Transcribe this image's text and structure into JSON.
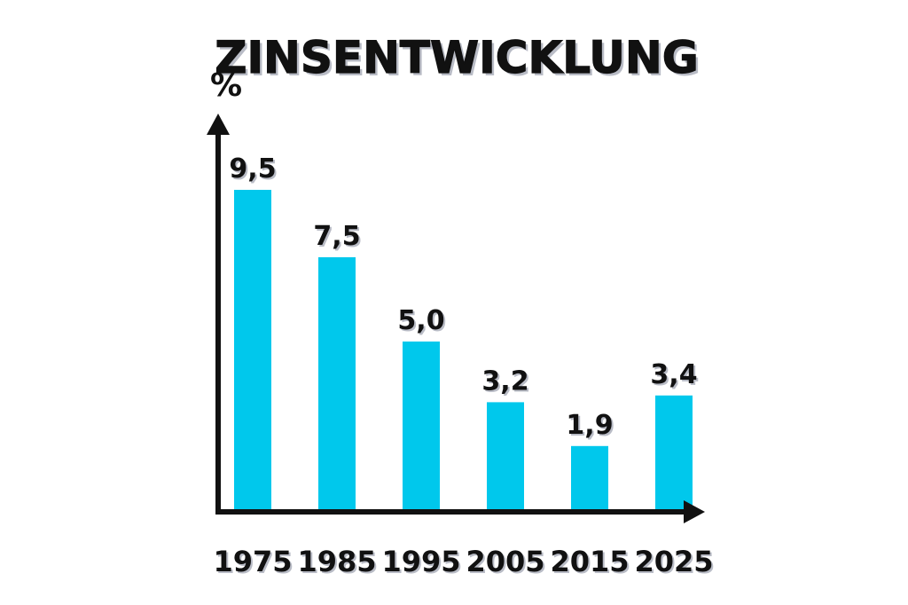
{
  "chart_data": {
    "type": "bar",
    "title": "ZINSENTWICKLUNG",
    "ylabel": "%",
    "xlabel": "",
    "categories": [
      "1975",
      "1985",
      "1995",
      "2005",
      "2015",
      "2025"
    ],
    "values": [
      9.5,
      7.5,
      5.0,
      3.2,
      1.9,
      3.4
    ],
    "value_labels": [
      "9,5",
      "7,5",
      "5,0",
      "3,2",
      "1,9",
      "3,4"
    ],
    "ylim": [
      0,
      10
    ],
    "grid": false,
    "legend": "none",
    "colors": {
      "bar": "#00c8ec",
      "axis": "#111111",
      "text": "#111111",
      "shadow": "#b9bcc6"
    }
  }
}
